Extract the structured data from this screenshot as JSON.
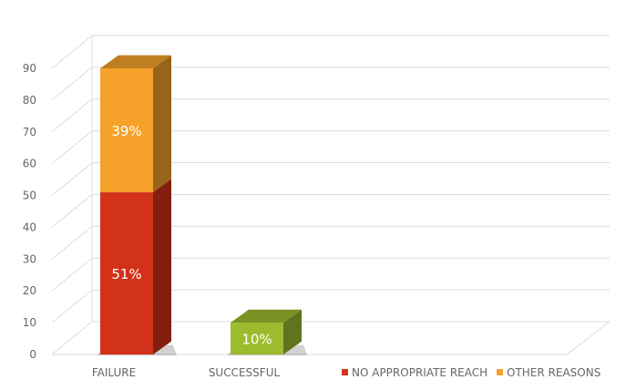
{
  "chart_data": {
    "type": "bar",
    "stacked": true,
    "style": "3d",
    "title": "",
    "xlabel": "",
    "ylabel": "",
    "ylim": [
      0,
      90
    ],
    "yticks": [
      0,
      10,
      20,
      30,
      40,
      50,
      60,
      70,
      80,
      90
    ],
    "grid": true,
    "categories": [
      "FAILURE",
      "SUCCESSFUL"
    ],
    "series": [
      {
        "name": "NO APPROPRIATE REACH",
        "color": "#d2321a",
        "values": [
          51,
          10
        ],
        "labels": [
          "51%",
          "10%"
        ]
      },
      {
        "name": "OTHER REASONS",
        "color": "#f5a12a",
        "values": [
          39,
          0
        ],
        "labels": [
          "39%",
          ""
        ]
      }
    ],
    "bar_color_overrides": [
      {
        "category": "SUCCESSFUL",
        "series": "NO APPROPRIATE REACH",
        "color": "#9cbb2e"
      }
    ],
    "legend": {
      "position": "bottom-right"
    }
  }
}
